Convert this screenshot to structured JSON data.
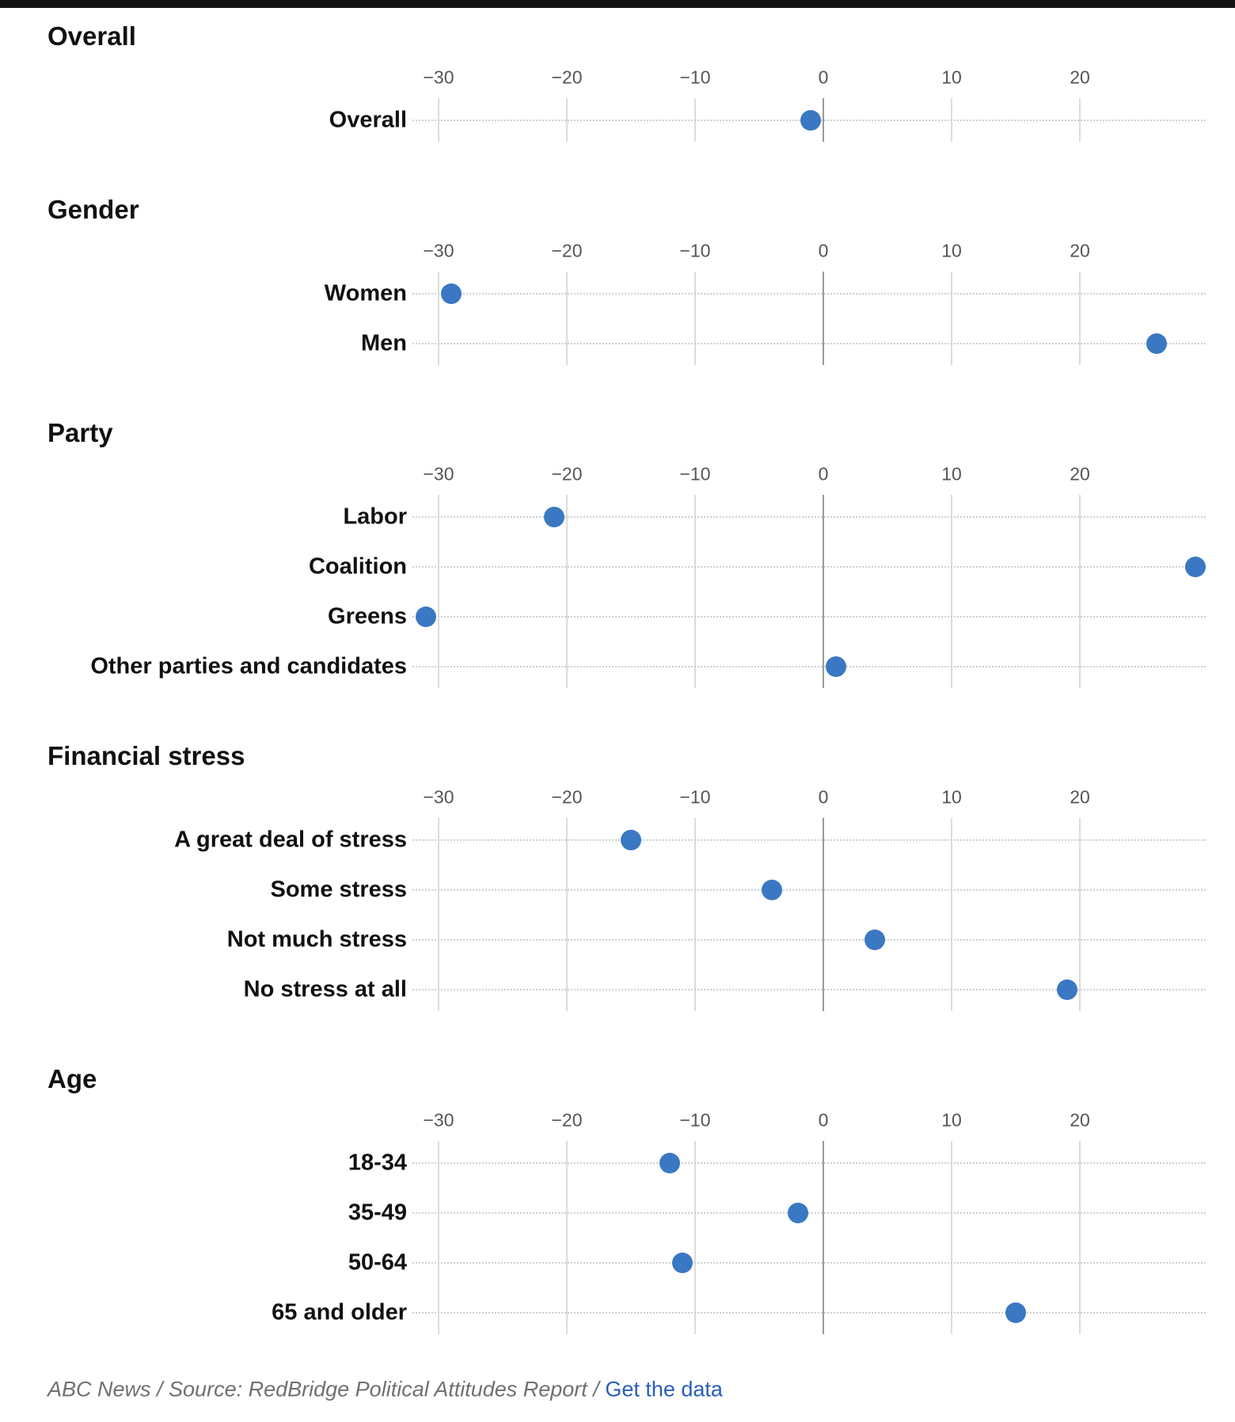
{
  "chart_data": {
    "type": "scatter",
    "xlim": [
      -30,
      29
    ],
    "ticks": [
      "−30",
      "−20",
      "−10",
      "0",
      "10",
      "20"
    ],
    "tick_values": [
      -30,
      -20,
      -10,
      0,
      10,
      20
    ],
    "dot_color": "#3a78c3",
    "sections": [
      {
        "title": "Overall",
        "rows": [
          {
            "label": "Overall",
            "value": -1
          }
        ]
      },
      {
        "title": "Gender",
        "rows": [
          {
            "label": "Women",
            "value": -29
          },
          {
            "label": "Men",
            "value": 26
          }
        ]
      },
      {
        "title": "Party",
        "rows": [
          {
            "label": "Labor",
            "value": -21
          },
          {
            "label": "Coalition",
            "value": 29
          },
          {
            "label": "Greens",
            "value": -31
          },
          {
            "label": "Other parties and candidates",
            "value": 1
          }
        ]
      },
      {
        "title": "Financial stress",
        "rows": [
          {
            "label": "A great deal of stress",
            "value": -15
          },
          {
            "label": "Some stress",
            "value": -4
          },
          {
            "label": "Not much stress",
            "value": 4
          },
          {
            "label": "No stress at all",
            "value": 19
          }
        ]
      },
      {
        "title": "Age",
        "rows": [
          {
            "label": "18-34",
            "value": -12
          },
          {
            "label": "35-49",
            "value": -2
          },
          {
            "label": "50-64",
            "value": -11
          },
          {
            "label": "65 and older",
            "value": 15
          }
        ]
      }
    ]
  },
  "footer": {
    "source": "ABC News / Source: RedBridge Political Attitudes Report / ",
    "link": "Get the data"
  }
}
